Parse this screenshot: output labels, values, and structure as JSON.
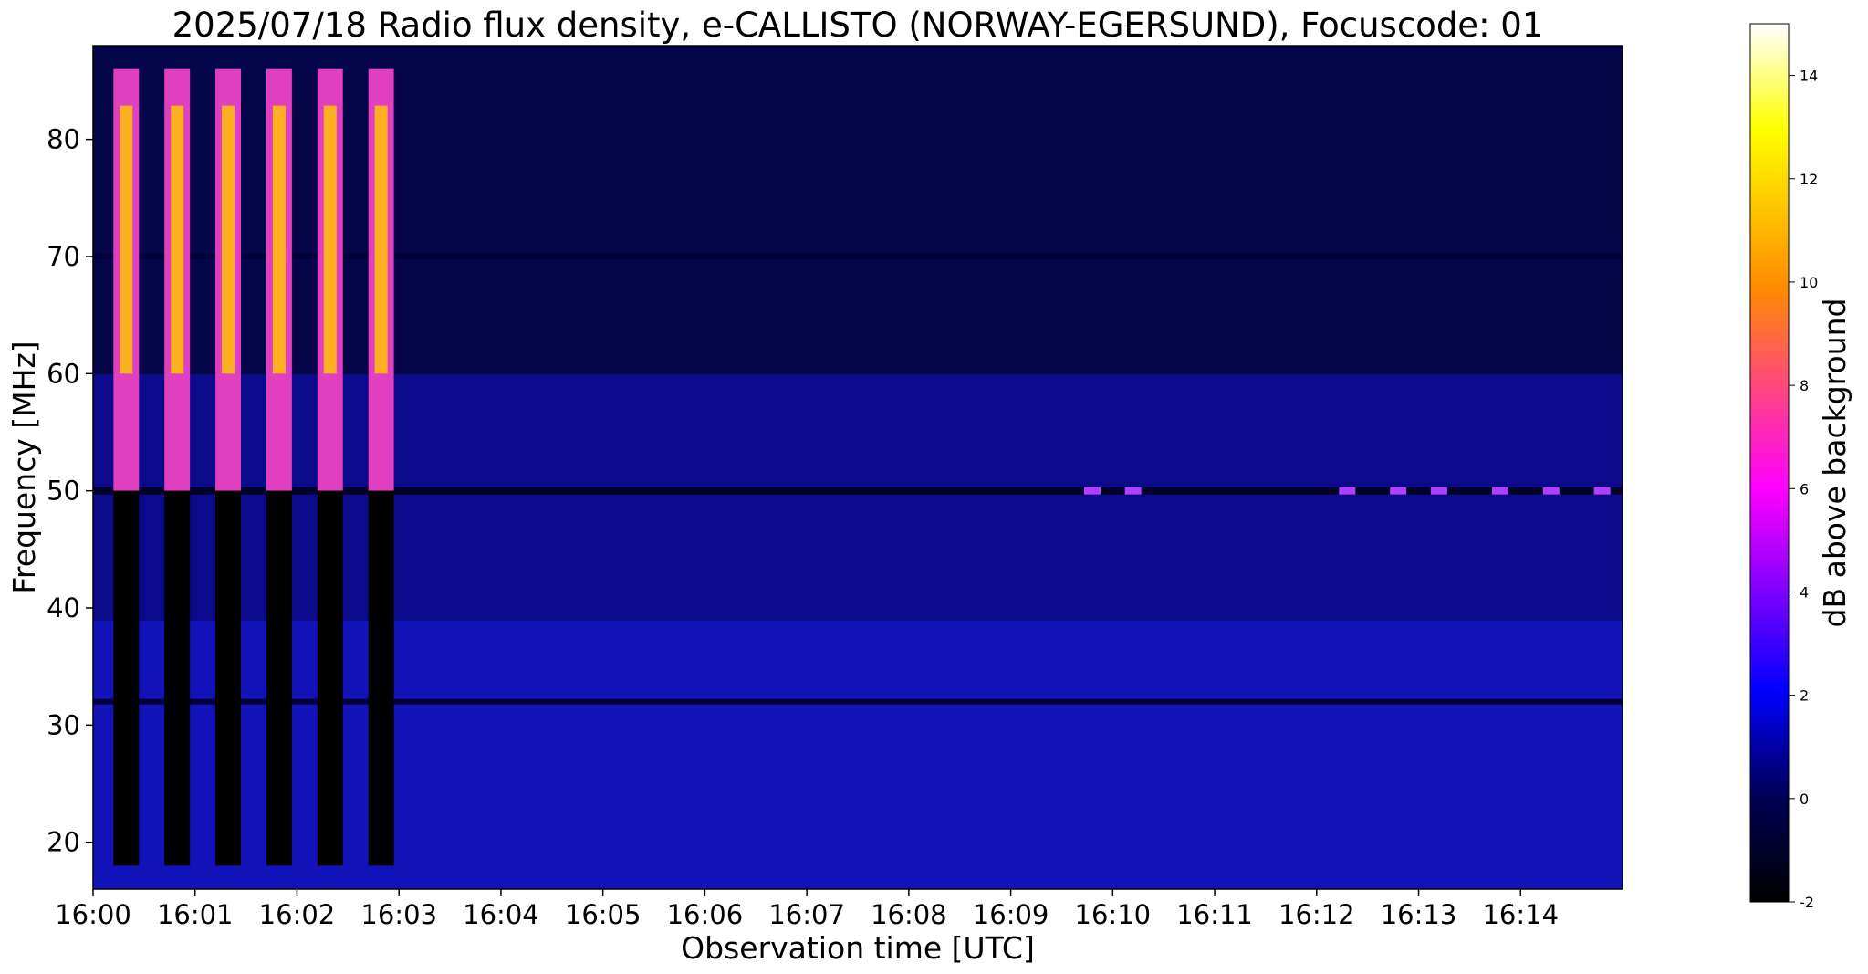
{
  "chart_data": {
    "type": "heatmap",
    "title": "2025/07/18  Radio flux density, e-CALLISTO (NORWAY-EGERSUND), Focuscode: 01",
    "xlabel": "Observation time [UTC]",
    "ylabel": "Frequency [MHz]",
    "x_range": [
      "16:00",
      "16:15"
    ],
    "xlim_minutes": [
      0,
      15
    ],
    "x_ticks": [
      "16:00",
      "16:01",
      "16:02",
      "16:03",
      "16:04",
      "16:05",
      "16:06",
      "16:07",
      "16:08",
      "16:09",
      "16:10",
      "16:11",
      "16:12",
      "16:13",
      "16:14"
    ],
    "ylim": [
      16,
      88
    ],
    "y_ticks": [
      20,
      30,
      40,
      50,
      60,
      70,
      80
    ],
    "colorbar": {
      "label": "dB above background",
      "range": [
        -2,
        15
      ],
      "ticks": [
        -2,
        0,
        2,
        4,
        6,
        8,
        10,
        12,
        14
      ],
      "colormap": [
        "#000000",
        "#0000ff",
        "#ff00ff",
        "#ff8c00",
        "#ffff00",
        "#ffffff"
      ]
    },
    "features": {
      "calibration_bursts": {
        "start_minutes": [
          0.2,
          0.7,
          1.2,
          1.7,
          2.2,
          2.7
        ],
        "width_minutes": 0.25,
        "peak_db": 12,
        "freq_range": [
          50,
          86
        ]
      },
      "background_db": 0.8,
      "interference_line_mhz": [
        32,
        70
      ],
      "emission_line_mhz": 50,
      "emission_spots_minutes": [
        9.8,
        10.2,
        12.3,
        12.8,
        13.2,
        13.8,
        14.3,
        14.8
      ]
    }
  }
}
